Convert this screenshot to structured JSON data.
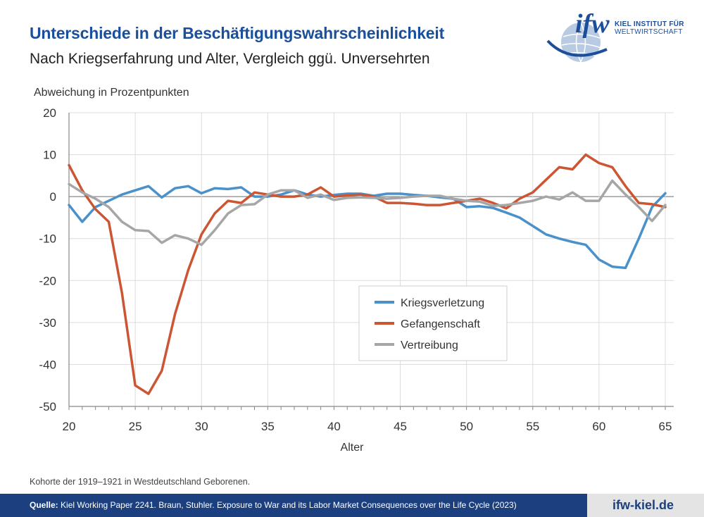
{
  "header": {
    "title": "Unterschiede in der Beschäftigungswahrscheinlichkeit",
    "subtitle": "Nach Kriegserfahrung und Alter, Vergleich ggü. Unversehrten"
  },
  "logo": {
    "wordmark": "ifw",
    "line1": "KIEL INSTITUT FÜR",
    "line2": "WELTWIRTSCHAFT"
  },
  "note": "Kohorte der 1919–1921 in Westdeutschland Geborenen.",
  "footer": {
    "source_label": "Quelle:",
    "source_text": "Kiel Working Paper 2241. Braun, Stuhler. Exposure to War and its Labor Market Consequences over the Life Cycle (2023)",
    "url": "ifw-kiel.de"
  },
  "colors": {
    "title": "#1b4f9b",
    "footer_bg": "#1b3f7f",
    "kriegsverletzung": "#4a90c9",
    "gefangenschaft": "#cc5533",
    "vertreibung": "#a6a6a6"
  },
  "chart_data": {
    "type": "line",
    "ylabel": "Abweichung in Prozentpunkten",
    "xlabel": "Alter",
    "xlim": [
      20,
      65
    ],
    "ylim": [
      -50,
      20
    ],
    "xticks": [
      "20",
      "25",
      "30",
      "35",
      "40",
      "45",
      "50",
      "55",
      "60",
      "65"
    ],
    "yticks": [
      "20",
      "10",
      "0",
      "-10",
      "-20",
      "-30",
      "-40",
      "-50"
    ],
    "grid": true,
    "legend_position": "center-right",
    "x": [
      20,
      21,
      22,
      23,
      24,
      25,
      26,
      27,
      28,
      29,
      30,
      31,
      32,
      33,
      34,
      35,
      36,
      37,
      38,
      39,
      40,
      41,
      42,
      43,
      44,
      45,
      46,
      47,
      48,
      49,
      50,
      51,
      52,
      53,
      54,
      55,
      56,
      57,
      58,
      59,
      60,
      61,
      62,
      63,
      64,
      65
    ],
    "series": [
      {
        "name": "Kriegsverletzung",
        "color": "#4a90c9",
        "values": [
          -2,
          -6,
          -2.5,
          -1,
          0.5,
          1.5,
          2.5,
          -0.2,
          2,
          2.5,
          0.8,
          2,
          1.8,
          2.2,
          0,
          0,
          0.5,
          1.5,
          0.5,
          0,
          0.4,
          0.7,
          0.7,
          0.2,
          0.7,
          0.7,
          0.4,
          0.2,
          -0.2,
          -0.5,
          -2.5,
          -2.3,
          -2.7,
          -3.8,
          -5,
          -7,
          -9,
          -10,
          -10.8,
          -11.5,
          -15,
          -16.7,
          -17,
          -10,
          -2.5,
          0.8
        ]
      },
      {
        "name": "Gefangenschaft",
        "color": "#cc5533",
        "values": [
          7.5,
          1.5,
          -3,
          -6,
          -23,
          -45,
          -47,
          -41.5,
          -28,
          -17.5,
          -9,
          -4,
          -1,
          -1.5,
          1,
          0.5,
          0,
          0,
          0.5,
          2.2,
          0,
          0.3,
          0.5,
          0,
          -1.5,
          -1.5,
          -1.7,
          -2,
          -2,
          -1.5,
          -1,
          -0.5,
          -1.5,
          -2.8,
          -0.5,
          1,
          4,
          7,
          6.5,
          10,
          8,
          7,
          2.5,
          -1.5,
          -1.8,
          -2.5
        ]
      },
      {
        "name": "Vertreibung",
        "color": "#a6a6a6",
        "values": [
          3,
          1,
          -0.5,
          -2.5,
          -6,
          -8,
          -8.2,
          -11,
          -9.2,
          -10,
          -11.5,
          -8,
          -4,
          -2,
          -1.8,
          0.5,
          1.5,
          1.5,
          -0.3,
          0.5,
          -0.8,
          -0.3,
          -0.2,
          -0.3,
          -0.5,
          -0.3,
          0,
          0.2,
          0.2,
          -0.5,
          -1,
          -1.2,
          -2.2,
          -2,
          -1.5,
          -1,
          0,
          -0.7,
          1,
          -1,
          -1,
          3.8,
          0.5,
          -2.5,
          -5.8,
          -2
        ]
      }
    ]
  }
}
